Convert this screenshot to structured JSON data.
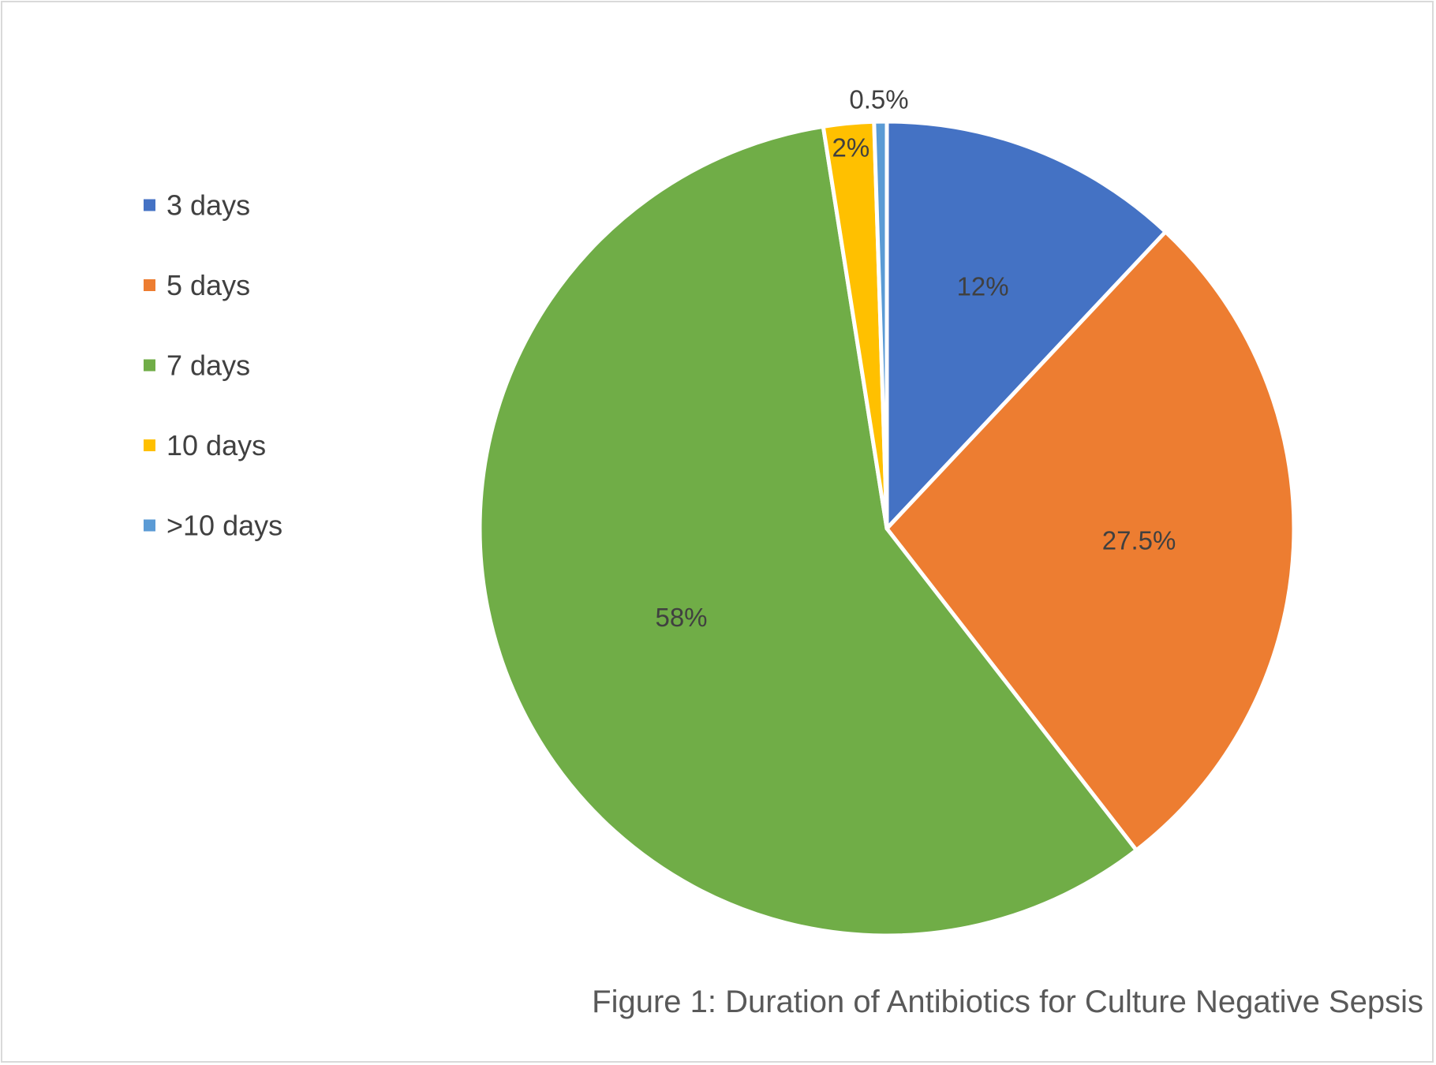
{
  "chart_data": {
    "type": "pie",
    "caption": "Figure 1: Duration of Antibiotics for Culture Negative Sepsis",
    "legend_position": "left",
    "slices": [
      {
        "label": "3 days",
        "value": 12,
        "value_label": "12%",
        "color": "#4472c4"
      },
      {
        "label": "5 days",
        "value": 27.5,
        "value_label": "27.5%",
        "color": "#ed7d31"
      },
      {
        "label": "7 days",
        "value": 58,
        "value_label": "58%",
        "color": "#70ad47"
      },
      {
        "label": "10 days",
        "value": 2,
        "value_label": "2%",
        "color": "#ffc000"
      },
      {
        "label": ">10 days",
        "value": 0.5,
        "value_label": "0.5%",
        "color": "#5b9bd5"
      }
    ]
  }
}
